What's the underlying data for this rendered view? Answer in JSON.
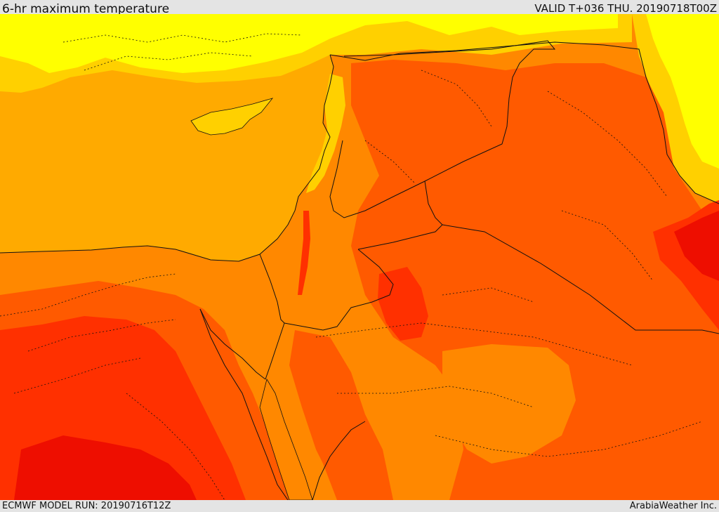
{
  "header": {
    "title": "6-hr maximum temperature",
    "valid_label": "VALID T+036 THU. 20190718T00Z"
  },
  "footer": {
    "model_run": "ECMWF MODEL RUN: 20190716T12Z",
    "credit": "ArabiaWeather Inc."
  },
  "colors": {
    "sea": "#ffaa00",
    "level_1": "#ffff00",
    "level_2": "#ffd000",
    "level_3": "#ff8800",
    "level_4": "#ff5a00",
    "level_5": "#ff3000",
    "level_6": "#ee0e00",
    "border": "#111111"
  }
}
